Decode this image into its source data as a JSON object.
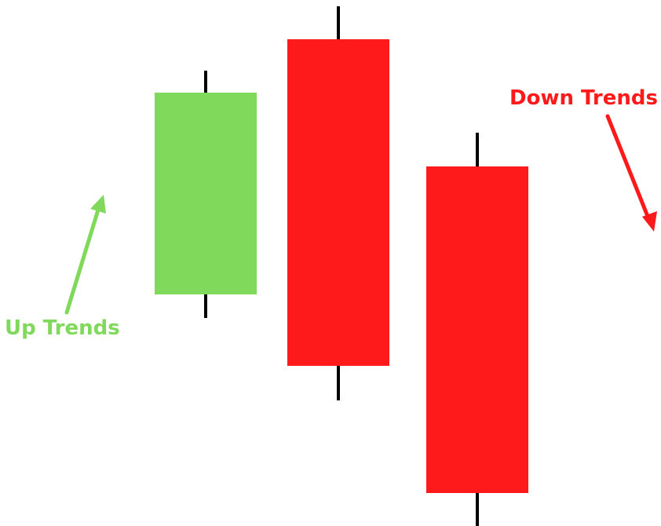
{
  "chart_data": {
    "type": "candlestick",
    "title": "",
    "xlabel": "",
    "ylabel": "",
    "ylim": [
      0,
      670
    ],
    "grid": false,
    "legend": "none",
    "candles": [
      {
        "open": 295,
        "close": 552,
        "high": 580,
        "low": 265,
        "direction": "up",
        "color": "#80d95a"
      },
      {
        "open": 620,
        "close": 204,
        "high": 662,
        "low": 160,
        "direction": "down",
        "color": "#fe1a1a"
      },
      {
        "open": 458,
        "close": 42,
        "high": 501,
        "low": 0,
        "direction": "down",
        "color": "#fe1a1a"
      }
    ],
    "annotations": [
      {
        "text": "Up Trends",
        "color": "#80d95a",
        "arrow": "up"
      },
      {
        "text": "Down Trends",
        "color": "#fe1a1a",
        "arrow": "down"
      }
    ]
  },
  "colors": {
    "background": "#ffffff",
    "wick": "#000000",
    "up": "#80d95a",
    "down": "#fe1a1a"
  }
}
